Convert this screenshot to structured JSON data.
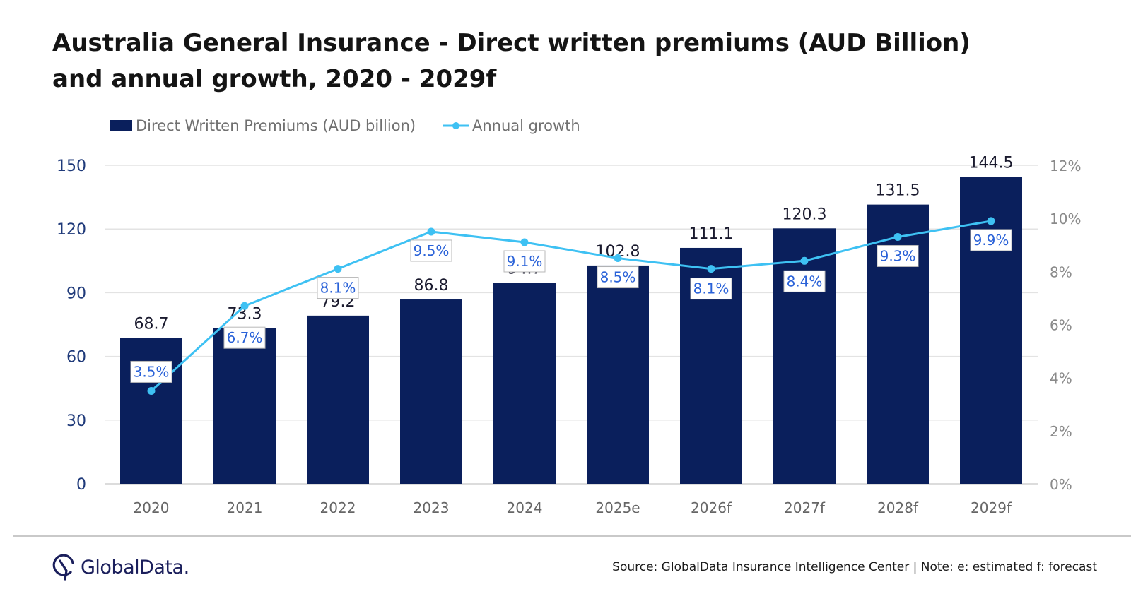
{
  "title": {
    "line1": "Australia General Insurance - Direct written premiums (AUD Billion)",
    "line2": "and annual growth, 2020 - 2029f"
  },
  "chart_data": {
    "type": "bar",
    "categories": [
      "2020",
      "2021",
      "2022",
      "2023",
      "2024",
      "2025e",
      "2026f",
      "2027f",
      "2028f",
      "2029f"
    ],
    "series": [
      {
        "name": "Direct Written Premiums (AUD billion)",
        "type": "bar",
        "axis": "left",
        "values": [
          68.7,
          73.3,
          79.2,
          86.8,
          94.7,
          102.8,
          111.1,
          120.3,
          131.5,
          144.5
        ],
        "labels": [
          "68.7",
          "73.3",
          "79.2",
          "86.8",
          "94.7",
          "102.8",
          "111.1",
          "120.3",
          "131.5",
          "144.5"
        ]
      },
      {
        "name": "Annual growth",
        "type": "line",
        "axis": "right",
        "values": [
          3.5,
          6.7,
          8.1,
          9.5,
          9.1,
          8.5,
          8.1,
          8.4,
          9.3,
          9.9
        ],
        "labels": [
          "3.5%",
          "6.7%",
          "8.1%",
          "9.5%",
          "9.1%",
          "8.5%",
          "8.1%",
          "8.4%",
          "9.3%",
          "9.9%"
        ]
      }
    ],
    "left_axis": {
      "ylim": [
        0,
        150
      ],
      "ticks": [
        "0",
        "30",
        "60",
        "90",
        "120",
        "150"
      ]
    },
    "right_axis": {
      "ylim": [
        0,
        12
      ],
      "ticks": [
        "0%",
        "2%",
        "4%",
        "6%",
        "8%",
        "10%",
        "12%"
      ]
    },
    "grid": true,
    "legend_position": "top-left",
    "colors": {
      "bar": "#0a1f5c",
      "line": "#3ec1f3",
      "label": "#2a62d8",
      "axis_text": "#1f3a7a",
      "cat_text": "#666666",
      "grid": "#e3e3e3"
    }
  },
  "footer": {
    "logo_text": "GlobalData.",
    "logo_icon": "globaldata-logo-icon",
    "source": "Source: GlobalData Insurance Intelligence Center | Note: e: estimated f: forecast"
  }
}
